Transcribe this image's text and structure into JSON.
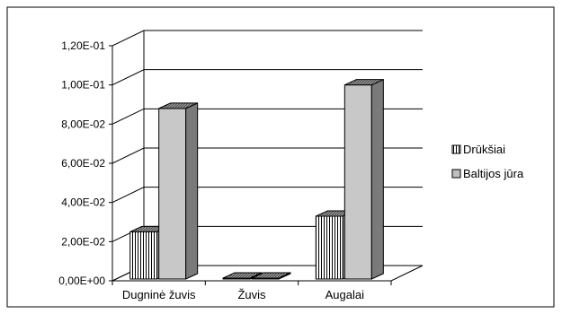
{
  "chart_data": {
    "type": "bar",
    "title": "",
    "xlabel": "",
    "ylabel": "",
    "categories": [
      "Dugninė žuvis",
      "Žuvis",
      "Augalai"
    ],
    "series": [
      {
        "name": "Drūkšiai",
        "values": [
          0.025,
          0.0,
          0.033
        ],
        "pattern": "vertical-stripes",
        "color": "#ffffff"
      },
      {
        "name": "Baltijos jūra",
        "values": [
          0.088,
          0.0,
          0.1
        ],
        "pattern": "solid",
        "color": "#c0c0c0"
      }
    ],
    "yticks": [
      "0,00E+00",
      "2,00E-02",
      "4,00E-02",
      "6,00E-02",
      "8,00E-02",
      "1,00E-01",
      "1,20E-01"
    ],
    "ylim": [
      0,
      0.12
    ],
    "grid": true,
    "three_d": true,
    "legend_position": "right"
  }
}
